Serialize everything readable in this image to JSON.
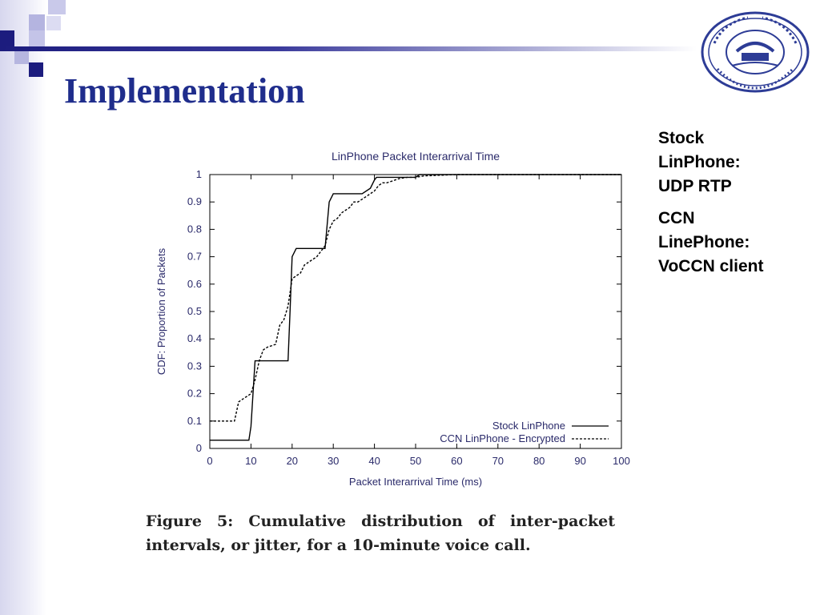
{
  "slide": {
    "title": "Implementation",
    "notes": [
      {
        "lines": [
          "Stock",
          "LinPhone:",
          "UDP RTP"
        ]
      },
      {
        "lines": [
          "CCN",
          "LinePhone:",
          "VoCCN client"
        ]
      }
    ],
    "caption": "Figure 5: Cumulative distribution of inter-packet intervals, or jitter, for a 10-minute voice call."
  },
  "colors": {
    "title": "#1f2d8c",
    "accent_dark": "#1c1c7e",
    "accent_light": "#9b9bd4"
  },
  "logo": {
    "icon": "university-seal-icon"
  },
  "chart_data": {
    "type": "line",
    "title": "LinPhone Packet Interarrival Time",
    "xlabel": "Packet Interarrival Time (ms)",
    "ylabel": "CDF: Proportion of Packets",
    "xlim": [
      0,
      100
    ],
    "ylim": [
      0,
      1
    ],
    "xticks": [
      "0",
      "10",
      "20",
      "30",
      "40",
      "50",
      "60",
      "70",
      "80",
      "90",
      "100"
    ],
    "yticks": [
      "0",
      "0.1",
      "0.2",
      "0.3",
      "0.4",
      "0.5",
      "0.6",
      "0.7",
      "0.8",
      "0.9",
      "1"
    ],
    "legend_position": "bottom-right",
    "series": [
      {
        "name": "Stock LinPhone",
        "style": "solid",
        "x": [
          0,
          9.5,
          10,
          11,
          19,
          19.5,
          20,
          21,
          28,
          29,
          30,
          30.5,
          37,
          39,
          40,
          40.5,
          50,
          51,
          100
        ],
        "y": [
          0.03,
          0.03,
          0.08,
          0.32,
          0.32,
          0.5,
          0.7,
          0.73,
          0.73,
          0.9,
          0.93,
          0.93,
          0.93,
          0.95,
          0.98,
          0.99,
          0.99,
          1.0,
          1.0
        ]
      },
      {
        "name": "CCN LinPhone - Encrypted",
        "style": "dashed",
        "x": [
          0,
          6,
          7,
          8,
          9,
          10,
          11,
          12,
          13,
          14,
          16,
          17,
          18,
          19,
          20,
          21,
          22,
          23,
          24,
          25,
          26,
          27,
          28,
          29,
          30,
          31,
          32,
          33,
          34,
          35,
          36,
          37,
          38,
          39,
          40,
          41,
          42,
          43,
          44,
          45,
          46,
          48,
          50,
          52,
          55,
          60,
          65,
          70,
          100
        ],
        "y": [
          0.1,
          0.1,
          0.17,
          0.18,
          0.19,
          0.2,
          0.25,
          0.32,
          0.36,
          0.37,
          0.38,
          0.45,
          0.47,
          0.52,
          0.62,
          0.63,
          0.64,
          0.67,
          0.68,
          0.69,
          0.7,
          0.72,
          0.74,
          0.8,
          0.83,
          0.84,
          0.86,
          0.87,
          0.88,
          0.9,
          0.9,
          0.91,
          0.92,
          0.93,
          0.94,
          0.96,
          0.97,
          0.97,
          0.975,
          0.98,
          0.985,
          0.99,
          0.99,
          0.995,
          0.997,
          1.0,
          1.0,
          1.0,
          1.0
        ]
      }
    ]
  }
}
